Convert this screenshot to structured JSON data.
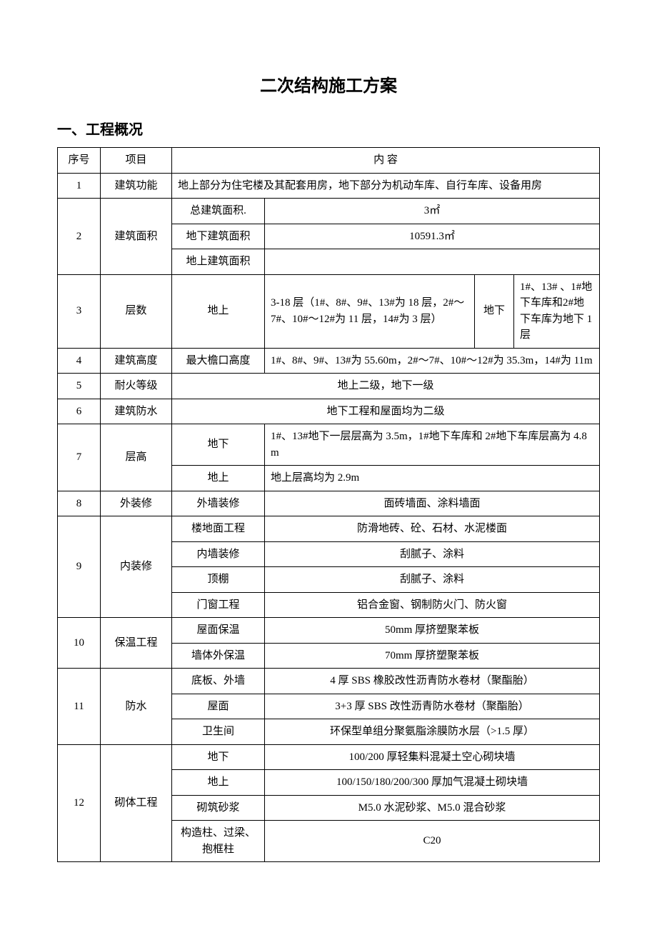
{
  "title": "二次结构施工方案",
  "section_heading": "一、工程概况",
  "headers": {
    "seq": "序号",
    "item": "项目",
    "content": "内 容"
  },
  "rows": {
    "r1": {
      "seq": "1",
      "item": "建筑功能",
      "content": "地上部分为住宅楼及其配套用房，地下部分为机动车库、自行车库、设备用房"
    },
    "r2": {
      "seq": "2",
      "item": "建筑面积",
      "total_label": "总建筑面积.",
      "total_val": "3㎡",
      "under_label": "地下建筑面积",
      "under_val": "10591.3㎡",
      "above_label": "地上建筑面积",
      "above_val": ""
    },
    "r3": {
      "seq": "3",
      "item": "层数",
      "above_label": "地上",
      "above_val": "3-18 层（1#、8#、9#、13#为 18 层，2#～7#、10#～12#为 11 层，14#为 3 层）",
      "under_label": "地下",
      "under_val": "1#、13# 、1#地下车库和2#地下车库为地下 1 层"
    },
    "r4": {
      "seq": "4",
      "item": "建筑高度",
      "sub": "最大檐口高度",
      "val": "1#、8#、9#、13#为 55.60m，2#～7#、10#～12#为 35.3m，14#为 11m"
    },
    "r5": {
      "seq": "5",
      "item": "耐火等级",
      "val": "地上二级，地下一级"
    },
    "r6": {
      "seq": "6",
      "item": "建筑防水",
      "val": "地下工程和屋面均为二级"
    },
    "r7": {
      "seq": "7",
      "item": "层高",
      "under_label": "地下",
      "under_val": "1#、13#地下一层层高为 3.5m，1#地下车库和 2#地下车库层高为 4.8m",
      "above_label": "地上",
      "above_val": "地上层高均为 2.9m"
    },
    "r8": {
      "seq": "8",
      "item": "外装修",
      "sub": "外墙装修",
      "val": "面砖墙面、涂料墙面"
    },
    "r9": {
      "seq": "9",
      "item": "内装修",
      "a_label": "楼地面工程",
      "a_val": "防滑地砖、砼、石材、水泥楼面",
      "b_label": "内墙装修",
      "b_val": "刮腻子、涂料",
      "c_label": "顶棚",
      "c_val": "刮腻子、涂料",
      "d_label": "门窗工程",
      "d_val": "铝合金窗、钢制防火门、防火窗"
    },
    "r10": {
      "seq": "10",
      "item": "保温工程",
      "a_label": "屋面保温",
      "a_val": "50mm 厚挤塑聚苯板",
      "b_label": "墙体外保温",
      "b_val": "70mm 厚挤塑聚苯板"
    },
    "r11": {
      "seq": "11",
      "item": "防水",
      "a_label": "底板、外墙",
      "a_val": "4 厚 SBS 橡胶改性沥青防水卷材（聚酯胎）",
      "b_label": "屋面",
      "b_val": "3+3 厚 SBS 改性沥青防水卷材（聚酯胎）",
      "c_label": "卫生间",
      "c_val": "环保型单组分聚氨脂涂膜防水层（>1.5 厚）"
    },
    "r12": {
      "seq": "12",
      "item": "砌体工程",
      "a_label": "地下",
      "a_val": "100/200 厚轻集料混凝土空心砌块墙",
      "b_label": "地上",
      "b_val": "100/150/180/200/300 厚加气混凝土砌块墙",
      "c_label": "砌筑砂浆",
      "c_val": "M5.0 水泥砂浆、M5.0 混合砂浆",
      "d_label": "构造柱、过梁、抱框柱",
      "d_val": "C20"
    }
  }
}
